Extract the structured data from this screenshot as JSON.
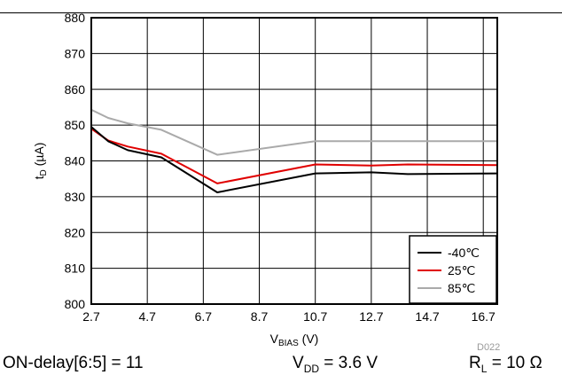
{
  "chart_data": {
    "type": "line",
    "xlabel_main": "V",
    "xlabel_sub": "BIAS",
    "xlabel_unit": " (V)",
    "ylabel_main": "t",
    "ylabel_sub": "D",
    "ylabel_unit": " (µA)",
    "xlim": [
      2.7,
      17.2
    ],
    "ylim": [
      800,
      880
    ],
    "x_ticks": [
      2.7,
      4.7,
      6.7,
      8.7,
      10.7,
      12.7,
      14.7,
      16.7
    ],
    "y_ticks": [
      800,
      810,
      820,
      830,
      840,
      850,
      860,
      870,
      880
    ],
    "grid": true,
    "legend_position": "bottom-right",
    "series": [
      {
        "name": "-40℃",
        "color": "#000000",
        "x": [
          2.7,
          3.3,
          4.0,
          5.2,
          7.2,
          10.7,
          12.7,
          14.0,
          17.2
        ],
        "y": [
          849.5,
          845.5,
          843.0,
          841.0,
          831.2,
          836.5,
          836.8,
          836.3,
          836.5
        ]
      },
      {
        "name": "25℃",
        "color": "#e00000",
        "x": [
          2.7,
          3.3,
          4.0,
          5.2,
          7.2,
          10.7,
          12.7,
          14.0,
          17.2
        ],
        "y": [
          849.0,
          845.7,
          844.0,
          842.0,
          833.7,
          839.0,
          838.7,
          839.0,
          838.8
        ]
      },
      {
        "name": "85℃",
        "color": "#aaaaaa",
        "x": [
          2.7,
          3.3,
          4.0,
          5.2,
          7.2,
          10.7,
          12.7,
          14.0,
          17.2
        ],
        "y": [
          854.3,
          852.0,
          850.5,
          848.7,
          841.7,
          845.5,
          845.5,
          845.5,
          845.5
        ]
      }
    ]
  },
  "captions": {
    "left": "ON-delay[6:5] = 11",
    "mid_main": "V",
    "mid_sub": "DD",
    "mid_rest": " = 3.6 V",
    "right_main": "R",
    "right_sub": "L",
    "right_rest": " = 10 Ω"
  },
  "figure_code": "D022"
}
